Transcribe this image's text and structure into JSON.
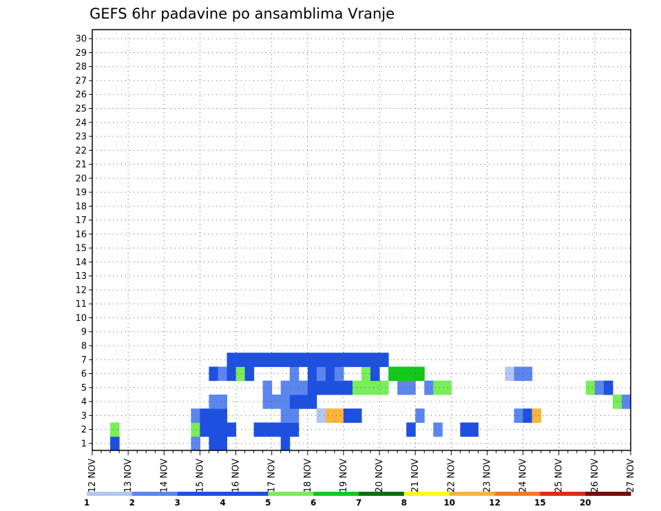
{
  "chart_data": {
    "type": "heatmap",
    "title": "GEFS 6hr padavine po ansamblima Vranje",
    "xlabel": "",
    "ylabel": "",
    "x_ticks": [
      "12 NOV",
      "13 NOV",
      "14 NOV",
      "15 NOV",
      "16 NOV",
      "17 NOV",
      "18 NOV",
      "19 NOV",
      "20 NOV",
      "21 NOV",
      "22 NOV",
      "23 NOV",
      "24 NOV",
      "25 NOV",
      "26 NOV",
      "27 NOV"
    ],
    "y_ticks": [
      "1",
      "2",
      "3",
      "4",
      "5",
      "6",
      "7",
      "8",
      "9",
      "10",
      "11",
      "12",
      "13",
      "14",
      "15",
      "16",
      "17",
      "18",
      "19",
      "20",
      "21",
      "22",
      "23",
      "24",
      "25",
      "26",
      "27",
      "28",
      "29",
      "30"
    ],
    "time_steps_per_day": 4,
    "grid": true,
    "colorbar": {
      "labels": [
        "1",
        "2",
        "3",
        "4",
        "5",
        "6",
        "7",
        "8",
        "10",
        "12",
        "15",
        "20"
      ],
      "colors": [
        "#b3c6f5",
        "#5b86f0",
        "#1e50e0",
        "#1e50e0",
        "#78ee5a",
        "#14c81e",
        "#0a6e14",
        "#fbfb1e",
        "#fbb43c",
        "#fa781e",
        "#dc2d14",
        "#780a0a"
      ]
    },
    "cells": [
      [
        2,
        1,
        2
      ],
      [
        2,
        1,
        3
      ],
      [
        11,
        1,
        2
      ],
      [
        13,
        1,
        3
      ],
      [
        14,
        1,
        4
      ],
      [
        21,
        1,
        4
      ],
      [
        2,
        2,
        5
      ],
      [
        11,
        2,
        5
      ],
      [
        12,
        2,
        3
      ],
      [
        13,
        2,
        4
      ],
      [
        14,
        2,
        3
      ],
      [
        15,
        2,
        3
      ],
      [
        18,
        2,
        3
      ],
      [
        19,
        2,
        3
      ],
      [
        20,
        2,
        4
      ],
      [
        21,
        2,
        4
      ],
      [
        22,
        2,
        3
      ],
      [
        35,
        2,
        4
      ],
      [
        38,
        2,
        2
      ],
      [
        41,
        2,
        3
      ],
      [
        42,
        2,
        4
      ],
      [
        11,
        3,
        2
      ],
      [
        12,
        3,
        3
      ],
      [
        13,
        3,
        3
      ],
      [
        14,
        3,
        3
      ],
      [
        21,
        3,
        2
      ],
      [
        22,
        3,
        2
      ],
      [
        25,
        3,
        1
      ],
      [
        25,
        3,
        1
      ],
      [
        26,
        3,
        9
      ],
      [
        27,
        3,
        9
      ],
      [
        28,
        3,
        3
      ],
      [
        29,
        3,
        4
      ],
      [
        36,
        3,
        2
      ],
      [
        47,
        3,
        2
      ],
      [
        48,
        3,
        3
      ],
      [
        49,
        3,
        9
      ],
      [
        13,
        4,
        2
      ],
      [
        14,
        4,
        2
      ],
      [
        19,
        4,
        2
      ],
      [
        20,
        4,
        2
      ],
      [
        21,
        4,
        2
      ],
      [
        22,
        4,
        3
      ],
      [
        23,
        4,
        3
      ],
      [
        24,
        4,
        3
      ],
      [
        58,
        4,
        5
      ],
      [
        59,
        4,
        2
      ],
      [
        19,
        5,
        2
      ],
      [
        21,
        5,
        2
      ],
      [
        22,
        5,
        2
      ],
      [
        23,
        5,
        2
      ],
      [
        24,
        5,
        3
      ],
      [
        25,
        5,
        3
      ],
      [
        26,
        5,
        3
      ],
      [
        27,
        5,
        3
      ],
      [
        28,
        5,
        4
      ],
      [
        29,
        5,
        5
      ],
      [
        30,
        5,
        5
      ],
      [
        31,
        5,
        5
      ],
      [
        32,
        5,
        5
      ],
      [
        34,
        5,
        2
      ],
      [
        35,
        5,
        2
      ],
      [
        37,
        5,
        2
      ],
      [
        38,
        5,
        5
      ],
      [
        39,
        5,
        5
      ],
      [
        55,
        5,
        5
      ],
      [
        56,
        5,
        2
      ],
      [
        57,
        5,
        3
      ],
      [
        13,
        6,
        3
      ],
      [
        14,
        6,
        2
      ],
      [
        15,
        6,
        3
      ],
      [
        16,
        6,
        5
      ],
      [
        17,
        6,
        4
      ],
      [
        22,
        6,
        2
      ],
      [
        24,
        6,
        4
      ],
      [
        25,
        6,
        2
      ],
      [
        26,
        6,
        4
      ],
      [
        27,
        6,
        2
      ],
      [
        30,
        6,
        5
      ],
      [
        31,
        6,
        4
      ],
      [
        33,
        6,
        6
      ],
      [
        34,
        6,
        6
      ],
      [
        35,
        6,
        6
      ],
      [
        36,
        6,
        6
      ],
      [
        46,
        6,
        1
      ],
      [
        47,
        6,
        2
      ],
      [
        48,
        6,
        2
      ],
      [
        15,
        7,
        4
      ],
      [
        16,
        7,
        4
      ],
      [
        17,
        7,
        4
      ],
      [
        18,
        7,
        4
      ],
      [
        19,
        7,
        4
      ],
      [
        20,
        7,
        4
      ],
      [
        21,
        7,
        4
      ],
      [
        22,
        7,
        4
      ],
      [
        23,
        7,
        4
      ],
      [
        24,
        7,
        4
      ],
      [
        25,
        7,
        4
      ],
      [
        26,
        7,
        4
      ],
      [
        27,
        7,
        4
      ],
      [
        28,
        7,
        4
      ],
      [
        29,
        7,
        4
      ],
      [
        30,
        7,
        4
      ],
      [
        31,
        7,
        4
      ],
      [
        32,
        7,
        4
      ]
    ]
  }
}
